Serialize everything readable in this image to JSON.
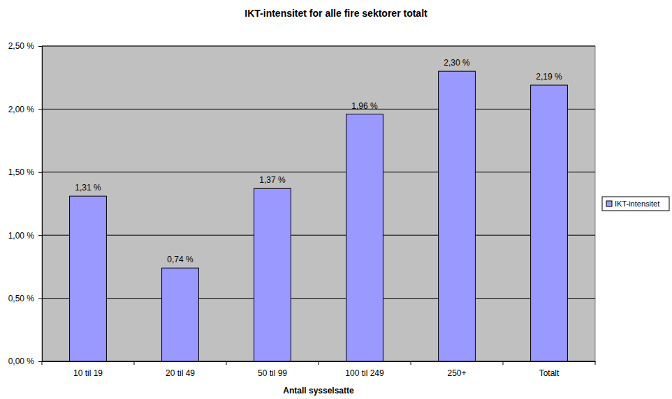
{
  "chart_data": {
    "type": "bar",
    "title": "IKT-intensitet for alle fire sektorer totalt",
    "x_label": "Antall sysselsatte",
    "categories": [
      "10 til 19",
      "20 til 49",
      "50 til 99",
      "100 til 249",
      "250+",
      "Totalt"
    ],
    "series": [
      {
        "name": "IKT-intensitet",
        "color": "#9999ff",
        "values": [
          1.31,
          0.74,
          1.37,
          1.96,
          2.3,
          2.19
        ],
        "value_labels": [
          "1,31 %",
          "0,74 %",
          "1,37 %",
          "1,96 %",
          "2,30 %",
          "2,19 %"
        ]
      }
    ],
    "ylim": [
      0,
      2.5
    ],
    "yticks": [
      {
        "value": 0,
        "label": "0,00 %"
      },
      {
        "value": 0.5,
        "label": "0,50 %"
      },
      {
        "value": 1.0,
        "label": "1,00 %"
      },
      {
        "value": 1.5,
        "label": "1,50 %"
      },
      {
        "value": 2.0,
        "label": "2,00 %"
      },
      {
        "value": 2.5,
        "label": "2,50 %"
      }
    ],
    "grid": true,
    "legend": "right",
    "data_labels": true
  }
}
